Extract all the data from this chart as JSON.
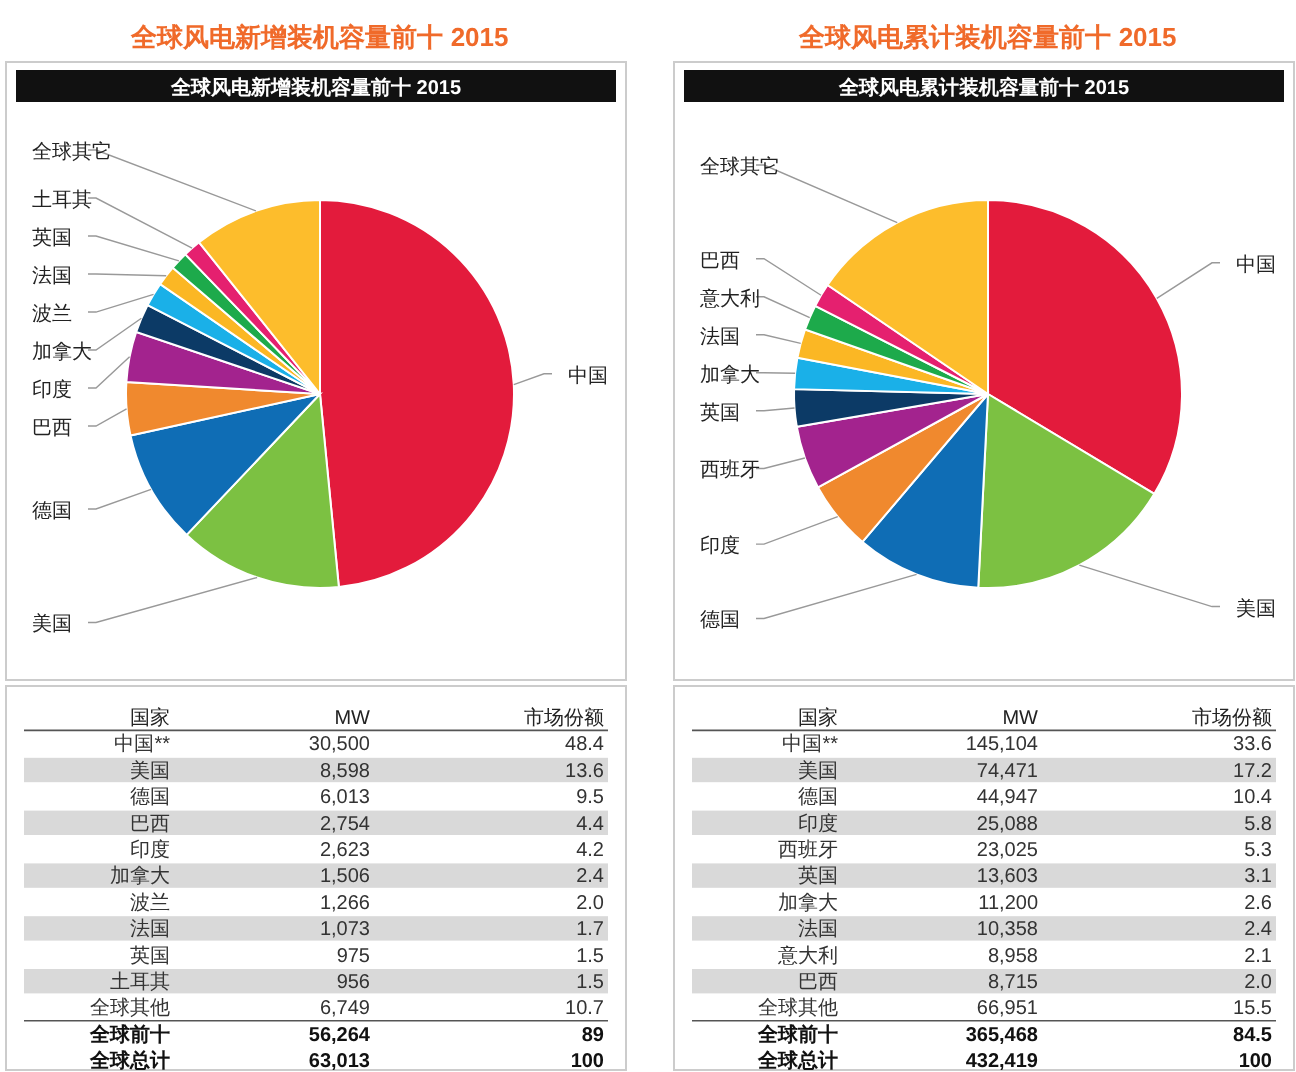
{
  "chart_data": [
    {
      "type": "pie",
      "title": "全球风电新增装机容量前十 2015",
      "subtitle": "全球风电新增装机容量前十 2015",
      "categories": [
        "中国",
        "美国",
        "德国",
        "巴西",
        "印度",
        "加拿大",
        "波兰",
        "法国",
        "英国",
        "土耳其",
        "全球其它"
      ],
      "values": [
        48.4,
        13.6,
        9.5,
        4.4,
        4.2,
        2.4,
        2.0,
        1.7,
        1.5,
        1.5,
        10.7
      ],
      "colors": [
        "#e31b3c",
        "#7cc142",
        "#0f6db5",
        "#f0892e",
        "#a3238e",
        "#0c3a66",
        "#1ab0e8",
        "#fbb724",
        "#1daa4b",
        "#e5206f",
        "#fdbd2c"
      ],
      "annotations": [
        "国家",
        "MW",
        "市场份额",
        "中国**",
        "30,500",
        "48.4",
        "美国",
        "8,598",
        "13.6",
        "德国",
        "6,013",
        "9.5",
        "巴西",
        "2,754",
        "4.4",
        "印度",
        "2,623",
        "4.2",
        "加拿大",
        "1,506",
        "2.4",
        "波兰",
        "1,266",
        "2.0",
        "法国",
        "1,073",
        "1.7",
        "英国",
        "975",
        "1.5",
        "土耳其",
        "956",
        "1.5",
        "全球其他",
        "6,749",
        "10.7",
        "全球前十",
        "56,264",
        "89",
        "全球总计",
        "63,013",
        "100"
      ]
    },
    {
      "type": "pie",
      "title": "全球风电累计装机容量前十 2015",
      "subtitle": "全球风电累计装机容量前十 2015",
      "categories": [
        "中国",
        "美国",
        "德国",
        "印度",
        "西班牙",
        "英国",
        "加拿大",
        "法国",
        "意大利",
        "巴西",
        "全球其它"
      ],
      "values": [
        33.6,
        17.2,
        10.4,
        5.8,
        5.3,
        3.1,
        2.6,
        2.4,
        2.1,
        2.0,
        15.5
      ],
      "colors": [
        "#e31b3c",
        "#7cc142",
        "#0f6db5",
        "#f0892e",
        "#a3238e",
        "#0c3a66",
        "#1ab0e8",
        "#fbb724",
        "#1daa4b",
        "#e5206f",
        "#fdbd2c"
      ],
      "annotations": [
        "国家",
        "MW",
        "市场份额",
        "中国**",
        "145,104",
        "33.6",
        "美国",
        "74,471",
        "17.2",
        "德国",
        "44,947",
        "10.4",
        "印度",
        "25,088",
        "5.8",
        "西班牙",
        "23,025",
        "5.3",
        "英国",
        "13,603",
        "3.1",
        "加拿大",
        "11,200",
        "2.6",
        "法国",
        "10,358",
        "2.4",
        "意大利",
        "8,958",
        "2.1",
        "巴西",
        "8,715",
        "2.0",
        "全球其他",
        "66,951",
        "15.5",
        "全球前十",
        "365,468",
        "84.5",
        "全球总计",
        "432,419",
        "100"
      ]
    }
  ]
}
